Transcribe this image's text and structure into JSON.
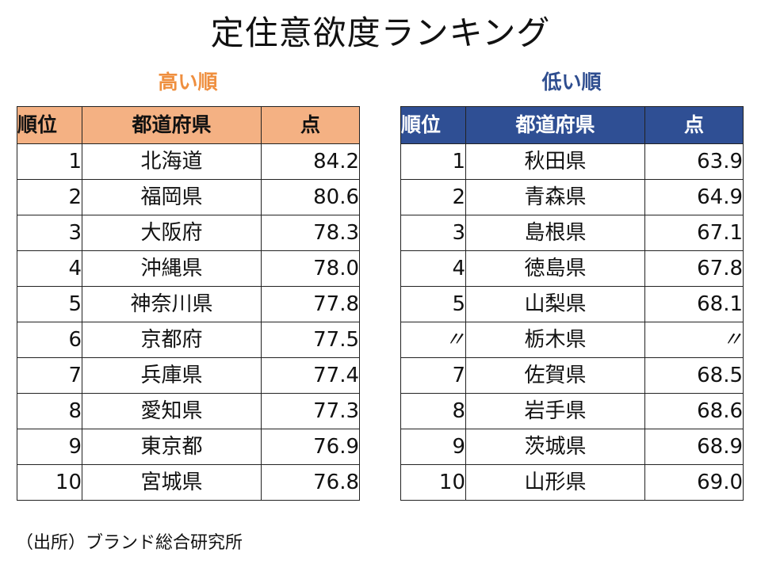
{
  "title": "定住意欲度ランキング",
  "high": {
    "label": "高い順",
    "headers": {
      "rank": "順位",
      "prefecture": "都道府県",
      "score": "点"
    },
    "rows": [
      {
        "rank": "1",
        "prefecture": "北海道",
        "score": "84.2"
      },
      {
        "rank": "2",
        "prefecture": "福岡県",
        "score": "80.6"
      },
      {
        "rank": "3",
        "prefecture": "大阪府",
        "score": "78.3"
      },
      {
        "rank": "4",
        "prefecture": "沖縄県",
        "score": "78.0"
      },
      {
        "rank": "5",
        "prefecture": "神奈川県",
        "score": "77.8"
      },
      {
        "rank": "6",
        "prefecture": "京都府",
        "score": "77.5"
      },
      {
        "rank": "7",
        "prefecture": "兵庫県",
        "score": "77.4"
      },
      {
        "rank": "8",
        "prefecture": "愛知県",
        "score": "77.3"
      },
      {
        "rank": "9",
        "prefecture": "東京都",
        "score": "76.9"
      },
      {
        "rank": "10",
        "prefecture": "宮城県",
        "score": "76.8"
      }
    ]
  },
  "low": {
    "label": "低い順",
    "headers": {
      "rank": "順位",
      "prefecture": "都道府県",
      "score": "点"
    },
    "rows": [
      {
        "rank": "1",
        "prefecture": "秋田県",
        "score": "63.9"
      },
      {
        "rank": "2",
        "prefecture": "青森県",
        "score": "64.9"
      },
      {
        "rank": "3",
        "prefecture": "島根県",
        "score": "67.1"
      },
      {
        "rank": "4",
        "prefecture": "徳島県",
        "score": "67.8"
      },
      {
        "rank": "5",
        "prefecture": "山梨県",
        "score": "68.1"
      },
      {
        "rank": "〃",
        "prefecture": "栃木県",
        "score": "〃"
      },
      {
        "rank": "7",
        "prefecture": "佐賀県",
        "score": "68.5"
      },
      {
        "rank": "8",
        "prefecture": "岩手県",
        "score": "68.6"
      },
      {
        "rank": "9",
        "prefecture": "茨城県",
        "score": "68.9"
      },
      {
        "rank": "10",
        "prefecture": "山形県",
        "score": "69.0"
      }
    ]
  },
  "source": "（出所）ブランド総合研究所",
  "colors": {
    "high_header_bg": "#f4b183",
    "high_label": "#ef8f3f",
    "low_header_bg": "#2f4f94",
    "low_label": "#2e4d8f"
  }
}
